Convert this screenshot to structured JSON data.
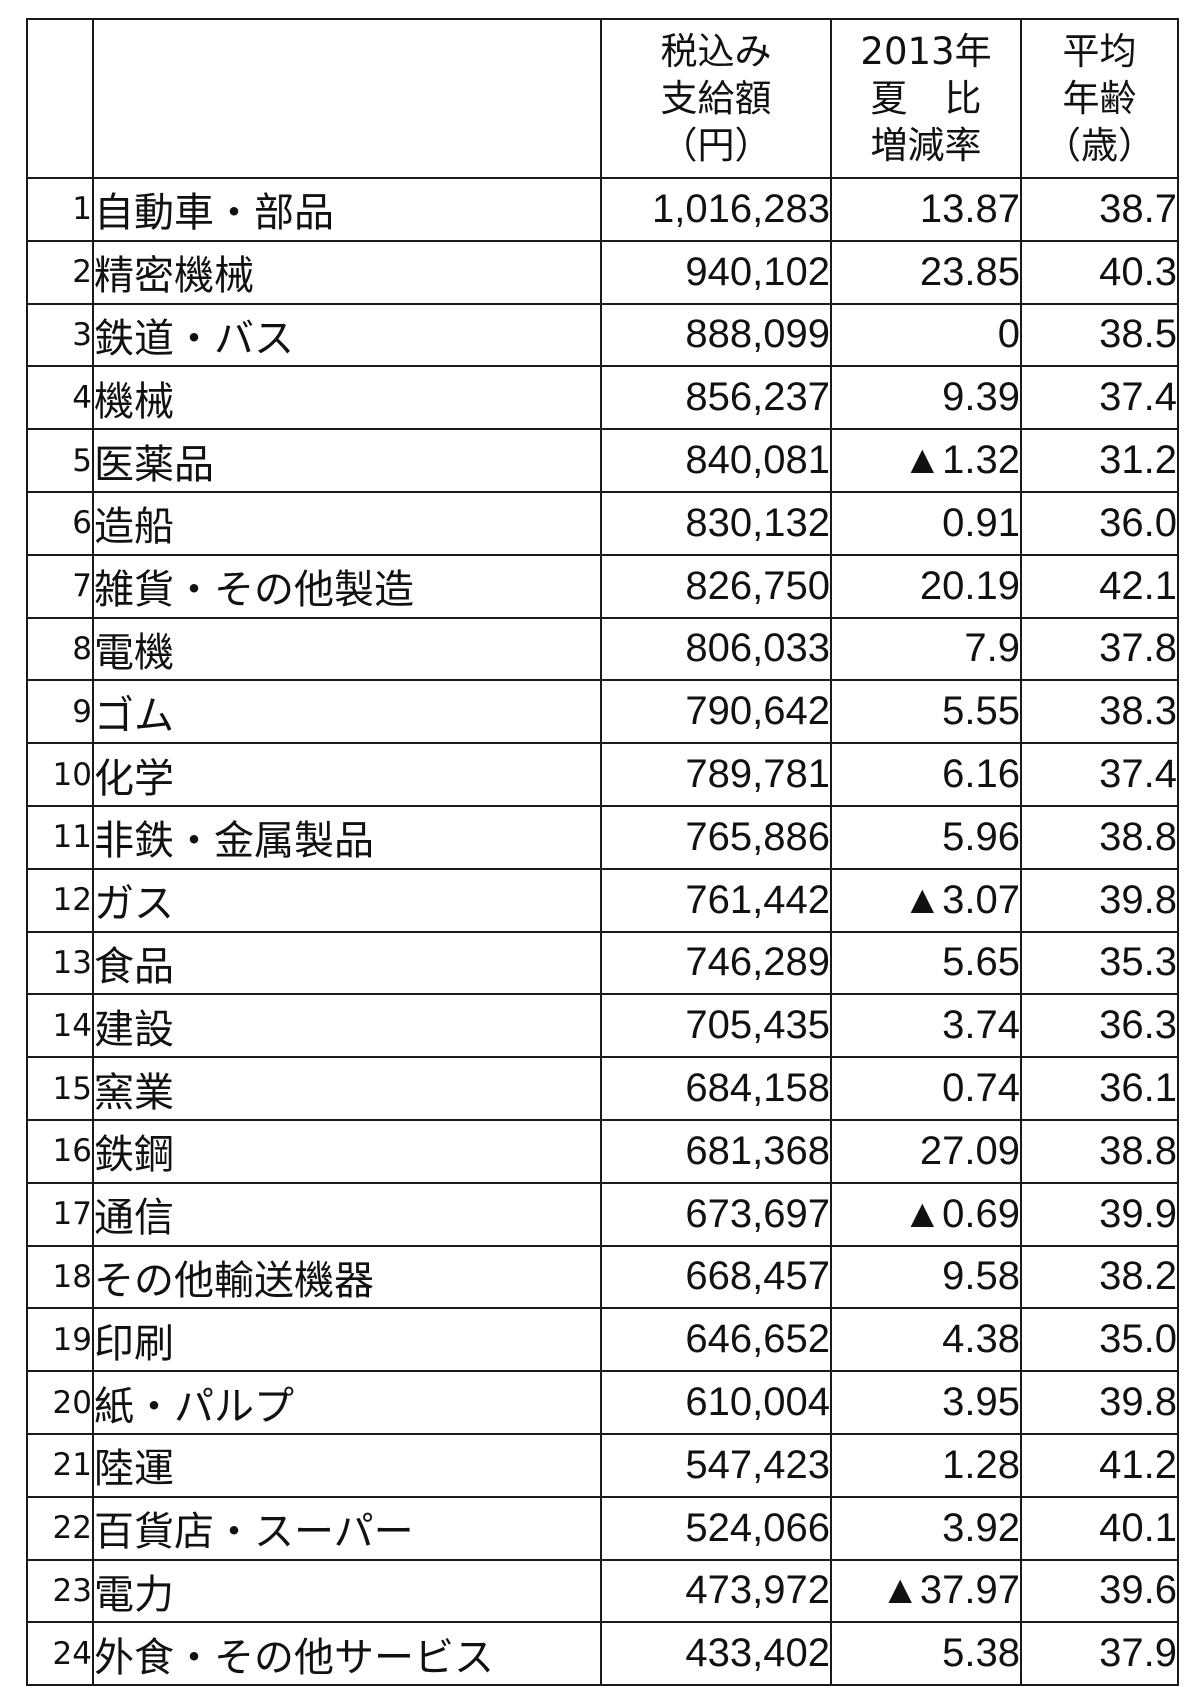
{
  "table": {
    "header": {
      "rank": "",
      "industry": "",
      "amount": [
        "税込み",
        "支給額",
        "（円）"
      ],
      "change": [
        "2013年",
        "夏　比",
        "増減率"
      ],
      "age": [
        "平均",
        "年齢",
        "（歳）"
      ]
    },
    "rows": [
      {
        "rank": "1",
        "industry": "自動車・部品",
        "amount": "1,016,283",
        "change": "13.87",
        "age": "38.7"
      },
      {
        "rank": "2",
        "industry": "精密機械",
        "amount": "940,102",
        "change": "23.85",
        "age": "40.3"
      },
      {
        "rank": "3",
        "industry": "鉄道・バス",
        "amount": "888,099",
        "change": "0",
        "age": "38.5"
      },
      {
        "rank": "4",
        "industry": "機械",
        "amount": "856,237",
        "change": "9.39",
        "age": "37.4"
      },
      {
        "rank": "5",
        "industry": "医薬品",
        "amount": "840,081",
        "change": "▲1.32",
        "age": "31.2"
      },
      {
        "rank": "6",
        "industry": "造船",
        "amount": "830,132",
        "change": "0.91",
        "age": "36.0"
      },
      {
        "rank": "7",
        "industry": "雑貨・その他製造",
        "amount": "826,750",
        "change": "20.19",
        "age": "42.1"
      },
      {
        "rank": "8",
        "industry": "電機",
        "amount": "806,033",
        "change": "7.9",
        "age": "37.8"
      },
      {
        "rank": "9",
        "industry": "ゴム",
        "amount": "790,642",
        "change": "5.55",
        "age": "38.3"
      },
      {
        "rank": "10",
        "industry": "化学",
        "amount": "789,781",
        "change": "6.16",
        "age": "37.4"
      },
      {
        "rank": "11",
        "industry": "非鉄・金属製品",
        "amount": "765,886",
        "change": "5.96",
        "age": "38.8"
      },
      {
        "rank": "12",
        "industry": "ガス",
        "amount": "761,442",
        "change": "▲3.07",
        "age": "39.8"
      },
      {
        "rank": "13",
        "industry": "食品",
        "amount": "746,289",
        "change": "5.65",
        "age": "35.3"
      },
      {
        "rank": "14",
        "industry": "建設",
        "amount": "705,435",
        "change": "3.74",
        "age": "36.3"
      },
      {
        "rank": "15",
        "industry": "窯業",
        "amount": "684,158",
        "change": "0.74",
        "age": "36.1"
      },
      {
        "rank": "16",
        "industry": "鉄鋼",
        "amount": "681,368",
        "change": "27.09",
        "age": "38.8"
      },
      {
        "rank": "17",
        "industry": "通信",
        "amount": "673,697",
        "change": "▲0.69",
        "age": "39.9"
      },
      {
        "rank": "18",
        "industry": "その他輸送機器",
        "amount": "668,457",
        "change": "9.58",
        "age": "38.2"
      },
      {
        "rank": "19",
        "industry": "印刷",
        "amount": "646,652",
        "change": "4.38",
        "age": "35.0"
      },
      {
        "rank": "20",
        "industry": "紙・パルプ",
        "amount": "610,004",
        "change": "3.95",
        "age": "39.8"
      },
      {
        "rank": "21",
        "industry": "陸運",
        "amount": "547,423",
        "change": "1.28",
        "age": "41.2"
      },
      {
        "rank": "22",
        "industry": "百貨店・スーパー",
        "amount": "524,066",
        "change": "3.92",
        "age": "40.1"
      },
      {
        "rank": "23",
        "industry": "電力",
        "amount": "473,972",
        "change": "▲37.97",
        "age": "39.6"
      },
      {
        "rank": "24",
        "industry": "外食・その他サービス",
        "amount": "433,402",
        "change": "5.38",
        "age": "37.9"
      }
    ]
  }
}
